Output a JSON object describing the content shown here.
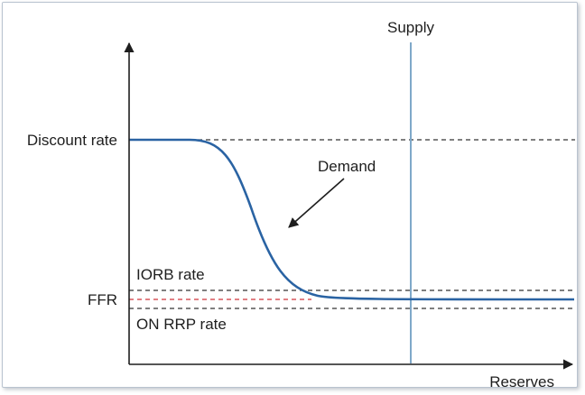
{
  "labels": {
    "supply": "Supply",
    "discount_rate": "Discount rate",
    "demand": "Demand",
    "iorb_rate": "IORB rate",
    "ffr": "FFR",
    "on_rrp_rate": "ON RRP rate",
    "x_axis": "Reserves"
  },
  "colors": {
    "axis": "#1e1e1e",
    "demand_curve": "#2a63a3",
    "supply_line": "#7fa8c9",
    "rate_lines": "#333333",
    "ffr_line": "#d0343b",
    "frame_border": "#b9c3cf"
  }
}
